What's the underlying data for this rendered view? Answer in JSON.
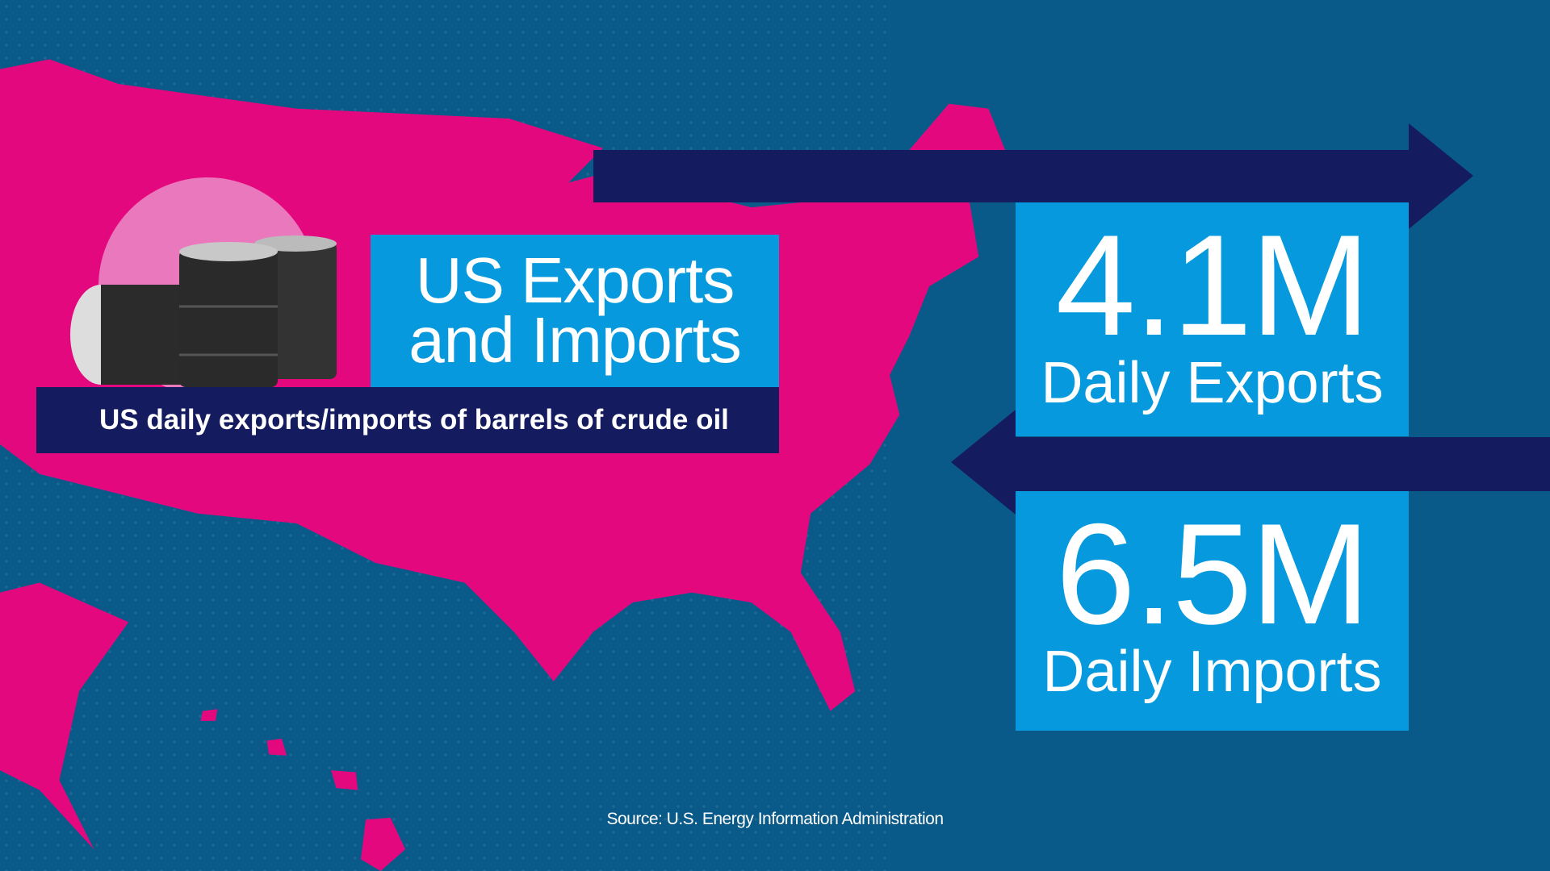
{
  "title": "US Exports and Imports",
  "subtitle": "US daily exports/imports of barrels of crude oil",
  "stats": [
    {
      "value": "4.1M",
      "label": "Daily Exports"
    },
    {
      "value": "6.5M",
      "label": "Daily Imports"
    }
  ],
  "source": "Source: U.S. Energy Information Administration"
}
